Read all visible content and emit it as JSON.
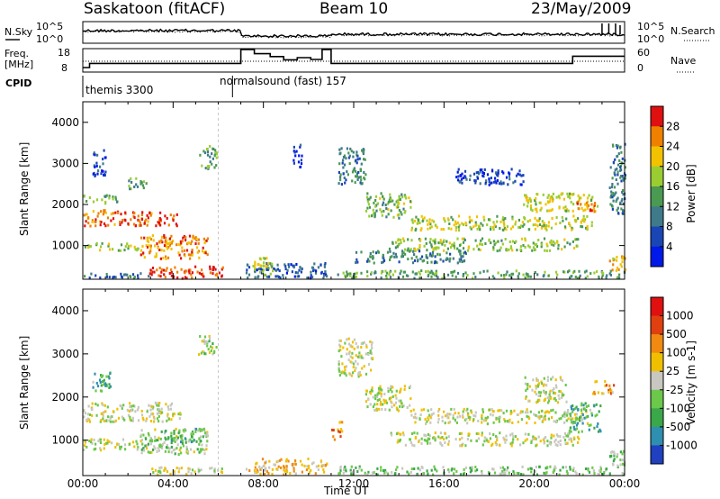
{
  "header": {
    "station": "Saskatoon (fitACF)",
    "beam": "Beam 10",
    "date": "23/May/2009"
  },
  "top_panels": {
    "nsky_label": "N.Sky",
    "nsky_ticks": [
      "10^5",
      "10^0"
    ],
    "nsky_right_ticks": [
      "10^5",
      "10^0"
    ],
    "nsearch_label": "N.Search",
    "freq_label": "Freq.",
    "freq_unit": "[MHz]",
    "freq_ticks": [
      "18",
      "8"
    ],
    "nave_ticks": [
      "60",
      "0"
    ],
    "nave_label": "Nave",
    "cpid_label": "CPID",
    "cpid_entries": [
      {
        "name": "themis 3300",
        "start_hour": 0
      },
      {
        "name": "normalsound (fast) 157",
        "start_hour": 6.75
      }
    ],
    "freq_mhz_steps": [
      {
        "h0": 0,
        "h1": 0.3,
        "f": 8.5
      },
      {
        "h0": 0.3,
        "h1": 7.0,
        "f": 10.8
      },
      {
        "h0": 7.0,
        "h1": 7.6,
        "f": 18.5
      },
      {
        "h0": 7.6,
        "h1": 8.3,
        "f": 16.2
      },
      {
        "h0": 8.3,
        "h1": 8.9,
        "f": 14.6
      },
      {
        "h0": 8.9,
        "h1": 9.5,
        "f": 12.8
      },
      {
        "h0": 9.5,
        "h1": 10.1,
        "f": 14.0
      },
      {
        "h0": 10.1,
        "h1": 10.6,
        "f": 13.0
      },
      {
        "h0": 10.6,
        "h1": 11.0,
        "f": 18.5
      },
      {
        "h0": 11.0,
        "h1": 21.7,
        "f": 10.8
      },
      {
        "h0": 21.7,
        "h1": 24.0,
        "f": 14.8
      }
    ]
  },
  "chart_data": [
    {
      "type": "heatmap",
      "panel": "power",
      "ylabel": "Slant Range [km]",
      "yticks": [
        1000,
        2000,
        3000,
        4000
      ],
      "ylim": [
        180,
        4500
      ],
      "xlim_hours": [
        0,
        24
      ],
      "colorbar_label": "Power [dB]",
      "colorbar_ticks": [
        "28",
        "24",
        "20",
        "16",
        "12",
        "8",
        "4"
      ],
      "colors": [
        "#0018e8",
        "#1a46b5",
        "#3f7a8a",
        "#4a9a52",
        "#9acd32",
        "#f2c200",
        "#f08000",
        "#e01010"
      ],
      "features": [
        {
          "h0": 0,
          "h1": 1.8,
          "r0": 1500,
          "r1": 1900,
          "v": 0.82
        },
        {
          "h0": 1.8,
          "h1": 4.2,
          "r0": 1500,
          "r1": 1850,
          "v": 0.88
        },
        {
          "h0": 0,
          "h1": 2.5,
          "r0": 900,
          "r1": 1100,
          "v": 0.55
        },
        {
          "h0": 2.5,
          "h1": 5.5,
          "r0": 700,
          "r1": 1300,
          "v": 0.78
        },
        {
          "h0": 2.9,
          "h1": 6.2,
          "r0": 230,
          "r1": 520,
          "v": 0.9
        },
        {
          "h0": 0,
          "h1": 2.9,
          "r0": 230,
          "r1": 380,
          "v": 0.3
        },
        {
          "h0": 0,
          "h1": 1.5,
          "r0": 2050,
          "r1": 2250,
          "v": 0.45
        },
        {
          "h0": 0.4,
          "h1": 1.0,
          "r0": 2700,
          "r1": 3400,
          "v": 0.18
        },
        {
          "h0": 2.0,
          "h1": 2.9,
          "r0": 2400,
          "r1": 2700,
          "v": 0.4
        },
        {
          "h0": 5.1,
          "h1": 5.9,
          "r0": 2900,
          "r1": 3450,
          "v": 0.42
        },
        {
          "h0": 7.2,
          "h1": 10.8,
          "r0": 230,
          "r1": 600,
          "v": 0.22
        },
        {
          "h0": 7.5,
          "h1": 8.4,
          "r0": 300,
          "r1": 750,
          "v": 0.6
        },
        {
          "h0": 9.3,
          "h1": 9.7,
          "r0": 2900,
          "r1": 3500,
          "v": 0.15
        },
        {
          "h0": 11.2,
          "h1": 24,
          "r0": 230,
          "r1": 420,
          "v": 0.42
        },
        {
          "h0": 11.3,
          "h1": 12.5,
          "r0": 2500,
          "r1": 3400,
          "v": 0.35
        },
        {
          "h0": 12.5,
          "h1": 14.5,
          "r0": 1700,
          "r1": 2300,
          "v": 0.5
        },
        {
          "h0": 14.5,
          "h1": 22.6,
          "r0": 1400,
          "r1": 1750,
          "v": 0.6
        },
        {
          "h0": 13.5,
          "h1": 22.0,
          "r0": 900,
          "r1": 1200,
          "v": 0.52
        },
        {
          "h0": 12.0,
          "h1": 17.0,
          "r0": 600,
          "r1": 900,
          "v": 0.35
        },
        {
          "h0": 19.5,
          "h1": 22.8,
          "r0": 1850,
          "r1": 2300,
          "v": 0.62
        },
        {
          "h0": 21.8,
          "h1": 22.8,
          "r0": 1850,
          "r1": 2100,
          "v": 0.85
        },
        {
          "h0": 16.5,
          "h1": 19.5,
          "r0": 2500,
          "r1": 2900,
          "v": 0.18
        },
        {
          "h0": 23.3,
          "h1": 24,
          "r0": 400,
          "r1": 800,
          "v": 0.68
        },
        {
          "h0": 23.3,
          "h1": 24,
          "r0": 1800,
          "r1": 3500,
          "v": 0.3
        }
      ]
    },
    {
      "type": "heatmap",
      "panel": "velocity",
      "ylabel": "Slant Range [km]",
      "yticks": [
        1000,
        2000,
        3000,
        4000
      ],
      "ylim": [
        180,
        4500
      ],
      "xlim_hours": [
        0,
        24
      ],
      "xticks": [
        "00:00",
        "04:00",
        "08:00",
        "12:00",
        "16:00",
        "20:00",
        "00:00"
      ],
      "xlabel": "Time UT",
      "colorbar_label": "Velocity [m s-1]",
      "colorbar_ticks": [
        "1000",
        "500",
        "100",
        "25",
        "-25",
        "-100",
        "-500",
        "-1000"
      ],
      "colors": [
        "#2040c0",
        "#2f8fb0",
        "#3aa84a",
        "#6cc84a",
        "#c8c8c0",
        "#f0c000",
        "#f08a10",
        "#e04010",
        "#e01010"
      ],
      "features": [
        {
          "h0": 0,
          "h1": 4.3,
          "r0": 1450,
          "r1": 1900,
          "v": 0.5
        },
        {
          "h0": 0,
          "h1": 3.0,
          "r0": 800,
          "r1": 1050,
          "v": 0.5
        },
        {
          "h0": 2.5,
          "h1": 5.5,
          "r0": 700,
          "r1": 1300,
          "v": 0.44
        },
        {
          "h0": 3.6,
          "h1": 5.2,
          "r0": 950,
          "r1": 1300,
          "v": 0.28
        },
        {
          "h0": 0.4,
          "h1": 1.2,
          "r0": 2100,
          "r1": 2600,
          "v": 0.3
        },
        {
          "h0": 3.0,
          "h1": 6.2,
          "r0": 230,
          "r1": 400,
          "v": 0.5
        },
        {
          "h0": 5.1,
          "h1": 5.9,
          "r0": 3000,
          "r1": 3450,
          "v": 0.46
        },
        {
          "h0": 7.2,
          "h1": 10.8,
          "r0": 230,
          "r1": 600,
          "v": 0.62
        },
        {
          "h0": 11.0,
          "h1": 11.5,
          "r0": 1000,
          "r1": 1450,
          "v": 0.72
        },
        {
          "h0": 11.3,
          "h1": 12.8,
          "r0": 2500,
          "r1": 3400,
          "v": 0.5
        },
        {
          "h0": 12.5,
          "h1": 14.5,
          "r0": 1700,
          "r1": 2300,
          "v": 0.5
        },
        {
          "h0": 14.5,
          "h1": 22.6,
          "r0": 1400,
          "r1": 1750,
          "v": 0.5
        },
        {
          "h0": 13.5,
          "h1": 22.0,
          "r0": 900,
          "r1": 1200,
          "v": 0.5
        },
        {
          "h0": 11.2,
          "h1": 24,
          "r0": 230,
          "r1": 420,
          "v": 0.38
        },
        {
          "h0": 19.5,
          "h1": 21.5,
          "r0": 1900,
          "r1": 2500,
          "v": 0.5
        },
        {
          "h0": 21.5,
          "h1": 22.9,
          "r0": 1200,
          "r1": 1900,
          "v": 0.28
        },
        {
          "h0": 23.3,
          "h1": 24,
          "r0": 400,
          "r1": 800,
          "v": 0.38
        },
        {
          "h0": 22.5,
          "h1": 23.5,
          "r0": 2100,
          "r1": 2400,
          "v": 0.66
        }
      ]
    }
  ]
}
